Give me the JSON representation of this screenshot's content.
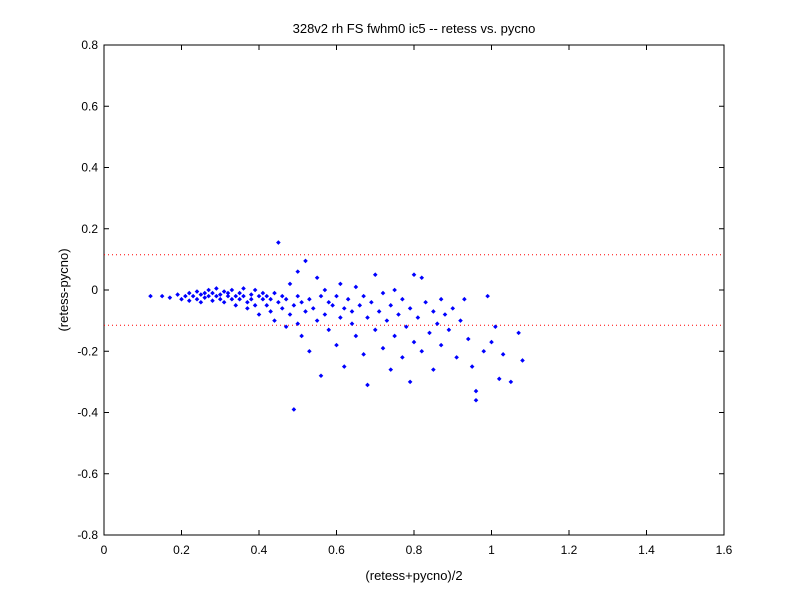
{
  "chart_data": {
    "type": "scatter",
    "title": "328v2 rh FS fwhm0 ic5 -- retess vs. pycno",
    "xlabel": "(retess+pycno)/2",
    "ylabel": "(retess-pycno)",
    "xlim": [
      0,
      1.6
    ],
    "ylim": [
      -0.8,
      0.8
    ],
    "xticks": [
      0,
      0.2,
      0.4,
      0.6,
      0.8,
      1,
      1.2,
      1.4,
      1.6
    ],
    "yticks": [
      -0.8,
      -0.6,
      -0.4,
      -0.2,
      0,
      0.2,
      0.4,
      0.6,
      0.8
    ],
    "xtick_labels": [
      "0",
      "0.2",
      "0.4",
      "0.6",
      "0.8",
      "1",
      "1.2",
      "1.4",
      "1.6"
    ],
    "ytick_labels": [
      "-0.8",
      "-0.6",
      "-0.4",
      "-0.2",
      "0",
      "0.2",
      "0.4",
      "0.6",
      "0.8"
    ],
    "grid": false,
    "reference_lines": [
      0.115,
      -0.115
    ],
    "colors": {
      "points": "#0000ff",
      "reference_lines": "#ff0000",
      "axes": "#000000"
    },
    "points": [
      [
        0.12,
        -0.02
      ],
      [
        0.15,
        -0.02
      ],
      [
        0.17,
        -0.025
      ],
      [
        0.19,
        -0.015
      ],
      [
        0.2,
        -0.03
      ],
      [
        0.21,
        -0.02
      ],
      [
        0.22,
        -0.01
      ],
      [
        0.22,
        -0.035
      ],
      [
        0.23,
        -0.02
      ],
      [
        0.24,
        -0.005
      ],
      [
        0.24,
        -0.03
      ],
      [
        0.25,
        -0.015
      ],
      [
        0.25,
        -0.04
      ],
      [
        0.26,
        -0.01
      ],
      [
        0.26,
        -0.025
      ],
      [
        0.27,
        0.0
      ],
      [
        0.27,
        -0.02
      ],
      [
        0.28,
        -0.035
      ],
      [
        0.28,
        -0.01
      ],
      [
        0.29,
        -0.02
      ],
      [
        0.29,
        0.005
      ],
      [
        0.3,
        -0.03
      ],
      [
        0.3,
        -0.015
      ],
      [
        0.31,
        -0.005
      ],
      [
        0.31,
        -0.04
      ],
      [
        0.32,
        -0.02
      ],
      [
        0.32,
        -0.01
      ],
      [
        0.33,
        0.0
      ],
      [
        0.33,
        -0.03
      ],
      [
        0.34,
        -0.02
      ],
      [
        0.34,
        -0.05
      ],
      [
        0.35,
        -0.01
      ],
      [
        0.35,
        -0.03
      ],
      [
        0.36,
        0.005
      ],
      [
        0.36,
        -0.02
      ],
      [
        0.37,
        -0.04
      ],
      [
        0.37,
        -0.06
      ],
      [
        0.38,
        -0.015
      ],
      [
        0.38,
        -0.03
      ],
      [
        0.39,
        0.0
      ],
      [
        0.39,
        -0.05
      ],
      [
        0.4,
        -0.02
      ],
      [
        0.4,
        -0.08
      ],
      [
        0.41,
        -0.03
      ],
      [
        0.41,
        -0.01
      ],
      [
        0.42,
        -0.05
      ],
      [
        0.42,
        -0.02
      ],
      [
        0.43,
        -0.07
      ],
      [
        0.43,
        -0.03
      ],
      [
        0.44,
        -0.01
      ],
      [
        0.44,
        -0.1
      ],
      [
        0.45,
        -0.04
      ],
      [
        0.45,
        0.155
      ],
      [
        0.46,
        -0.02
      ],
      [
        0.46,
        -0.06
      ],
      [
        0.47,
        -0.12
      ],
      [
        0.47,
        -0.03
      ],
      [
        0.48,
        -0.08
      ],
      [
        0.48,
        0.02
      ],
      [
        0.49,
        -0.05
      ],
      [
        0.49,
        -0.39
      ],
      [
        0.5,
        -0.02
      ],
      [
        0.5,
        -0.11
      ],
      [
        0.5,
        0.06
      ],
      [
        0.51,
        -0.04
      ],
      [
        0.51,
        -0.15
      ],
      [
        0.52,
        -0.07
      ],
      [
        0.52,
        0.095
      ],
      [
        0.53,
        -0.03
      ],
      [
        0.53,
        -0.2
      ],
      [
        0.54,
        -0.06
      ],
      [
        0.55,
        -0.1
      ],
      [
        0.55,
        0.04
      ],
      [
        0.56,
        -0.02
      ],
      [
        0.56,
        -0.28
      ],
      [
        0.57,
        -0.08
      ],
      [
        0.57,
        0.0
      ],
      [
        0.58,
        -0.13
      ],
      [
        0.58,
        -0.04
      ],
      [
        0.59,
        -0.05
      ],
      [
        0.6,
        -0.18
      ],
      [
        0.6,
        -0.02
      ],
      [
        0.61,
        -0.09
      ],
      [
        0.61,
        0.02
      ],
      [
        0.62,
        -0.06
      ],
      [
        0.62,
        -0.25
      ],
      [
        0.63,
        -0.03
      ],
      [
        0.64,
        -0.11
      ],
      [
        0.64,
        -0.07
      ],
      [
        0.65,
        -0.15
      ],
      [
        0.65,
        0.01
      ],
      [
        0.66,
        -0.05
      ],
      [
        0.67,
        -0.21
      ],
      [
        0.67,
        -0.02
      ],
      [
        0.68,
        -0.09
      ],
      [
        0.68,
        -0.31
      ],
      [
        0.69,
        -0.04
      ],
      [
        0.7,
        -0.13
      ],
      [
        0.7,
        0.05
      ],
      [
        0.71,
        -0.07
      ],
      [
        0.72,
        -0.19
      ],
      [
        0.72,
        -0.01
      ],
      [
        0.73,
        -0.1
      ],
      [
        0.74,
        -0.26
      ],
      [
        0.74,
        -0.05
      ],
      [
        0.75,
        -0.15
      ],
      [
        0.75,
        0.0
      ],
      [
        0.76,
        -0.08
      ],
      [
        0.77,
        -0.22
      ],
      [
        0.77,
        -0.03
      ],
      [
        0.78,
        -0.12
      ],
      [
        0.79,
        -0.3
      ],
      [
        0.79,
        -0.06
      ],
      [
        0.8,
        -0.17
      ],
      [
        0.8,
        0.05
      ],
      [
        0.81,
        -0.09
      ],
      [
        0.82,
        -0.2
      ],
      [
        0.82,
        0.04
      ],
      [
        0.83,
        -0.04
      ],
      [
        0.84,
        -0.14
      ],
      [
        0.85,
        -0.07
      ],
      [
        0.85,
        -0.26
      ],
      [
        0.86,
        -0.11
      ],
      [
        0.87,
        -0.03
      ],
      [
        0.87,
        -0.18
      ],
      [
        0.88,
        -0.08
      ],
      [
        0.89,
        -0.13
      ],
      [
        0.9,
        -0.06
      ],
      [
        0.91,
        -0.22
      ],
      [
        0.92,
        -0.1
      ],
      [
        0.93,
        -0.03
      ],
      [
        0.94,
        -0.16
      ],
      [
        0.95,
        -0.25
      ],
      [
        0.96,
        -0.33
      ],
      [
        0.96,
        -0.36
      ],
      [
        0.98,
        -0.2
      ],
      [
        0.99,
        -0.02
      ],
      [
        1.0,
        -0.17
      ],
      [
        1.01,
        -0.12
      ],
      [
        1.02,
        -0.29
      ],
      [
        1.03,
        -0.21
      ],
      [
        1.05,
        -0.3
      ],
      [
        1.07,
        -0.14
      ],
      [
        1.08,
        -0.23
      ]
    ]
  }
}
